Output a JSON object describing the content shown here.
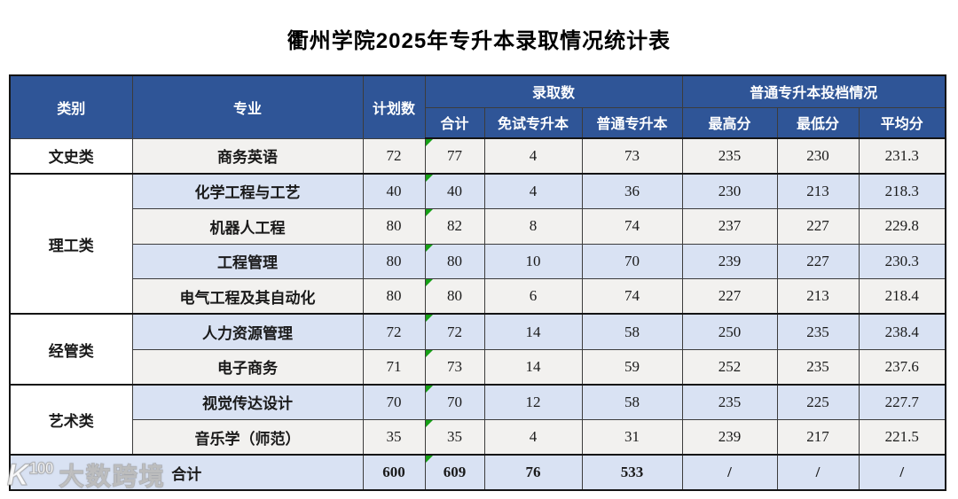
{
  "title": "衢州学院2025年专升本录取情况统计表",
  "colors": {
    "header_bg": "#2F5597",
    "header_text": "#ffffff",
    "row_alt_blue": "#d9e2f3",
    "row_white": "#f2f1ef",
    "category_cell_bg": "#ffffff",
    "flag_green": "#16a016",
    "border_dark": "#141414"
  },
  "chart_data": {
    "type": "table",
    "title": "衢州学院2025年专升本录取情况统计表",
    "column_headers_row1": [
      "类别",
      "专业",
      "计划数",
      "录取数",
      "普通专升本投档情况"
    ],
    "column_headers_row2": [
      "合计",
      "免试专升本",
      "普通专升本",
      "最高分",
      "最低分",
      "平均分"
    ],
    "rows": [
      [
        "文史类",
        "商务英语",
        72,
        77,
        4,
        73,
        235,
        230,
        231.3
      ],
      [
        "理工类",
        "化学工程与工艺",
        40,
        40,
        4,
        36,
        230,
        213,
        218.3
      ],
      [
        "理工类",
        "机器人工程",
        80,
        82,
        8,
        74,
        237,
        227,
        229.8
      ],
      [
        "理工类",
        "工程管理",
        80,
        80,
        10,
        70,
        239,
        227,
        230.3
      ],
      [
        "理工类",
        "电气工程及其自动化",
        80,
        80,
        6,
        74,
        227,
        213,
        218.4
      ],
      [
        "经管类",
        "人力资源管理",
        72,
        72,
        14,
        58,
        250,
        235,
        238.4
      ],
      [
        "经管类",
        "电子商务",
        71,
        73,
        14,
        59,
        252,
        235,
        237.6
      ],
      [
        "艺术类",
        "视觉传达设计",
        70,
        70,
        12,
        58,
        235,
        225,
        227.7
      ],
      [
        "艺术类",
        "音乐学（师范）",
        35,
        35,
        4,
        31,
        239,
        217,
        221.5
      ],
      [
        "合计",
        "",
        600,
        609,
        76,
        533,
        "/",
        "/",
        "/"
      ]
    ]
  },
  "table": {
    "headers": {
      "category": "类别",
      "major": "专业",
      "planned": "计划数",
      "admission_group": "录取数",
      "admission_sub": [
        "合计",
        "免试专升本",
        "普通专升本"
      ],
      "filing_group": "普通专升本投档情况",
      "filing_sub": [
        "最高分",
        "最低分",
        "平均分"
      ]
    },
    "groups": [
      {
        "category": "文史类",
        "rows": [
          {
            "major": "商务英语",
            "values": [
              "72",
              "77",
              "4",
              "73",
              "235",
              "230",
              "231.3"
            ]
          }
        ]
      },
      {
        "category": "理工类",
        "rows": [
          {
            "major": "化学工程与工艺",
            "values": [
              "40",
              "40",
              "4",
              "36",
              "230",
              "213",
              "218.3"
            ]
          },
          {
            "major": "机器人工程",
            "values": [
              "80",
              "82",
              "8",
              "74",
              "237",
              "227",
              "229.8"
            ]
          },
          {
            "major": "工程管理",
            "values": [
              "80",
              "80",
              "10",
              "70",
              "239",
              "227",
              "230.3"
            ]
          },
          {
            "major": "电气工程及其自动化",
            "values": [
              "80",
              "80",
              "6",
              "74",
              "227",
              "213",
              "218.4"
            ]
          }
        ]
      },
      {
        "category": "经管类",
        "rows": [
          {
            "major": "人力资源管理",
            "values": [
              "72",
              "72",
              "14",
              "58",
              "250",
              "235",
              "238.4"
            ]
          },
          {
            "major": "电子商务",
            "values": [
              "71",
              "73",
              "14",
              "59",
              "252",
              "235",
              "237.6"
            ]
          }
        ]
      },
      {
        "category": "艺术类",
        "rows": [
          {
            "major": "视觉传达设计",
            "values": [
              "70",
              "70",
              "12",
              "58",
              "235",
              "225",
              "227.7"
            ]
          },
          {
            "major": "音乐学（师范）",
            "values": [
              "35",
              "35",
              "4",
              "31",
              "239",
              "217",
              "221.5"
            ]
          }
        ]
      }
    ],
    "total_row": {
      "label": "合计",
      "values": [
        "600",
        "609",
        "76",
        "533",
        "/",
        "/",
        "/"
      ]
    }
  },
  "watermark": {
    "logo_k": "K",
    "logo_sup": "100",
    "text": "大数跨境"
  }
}
